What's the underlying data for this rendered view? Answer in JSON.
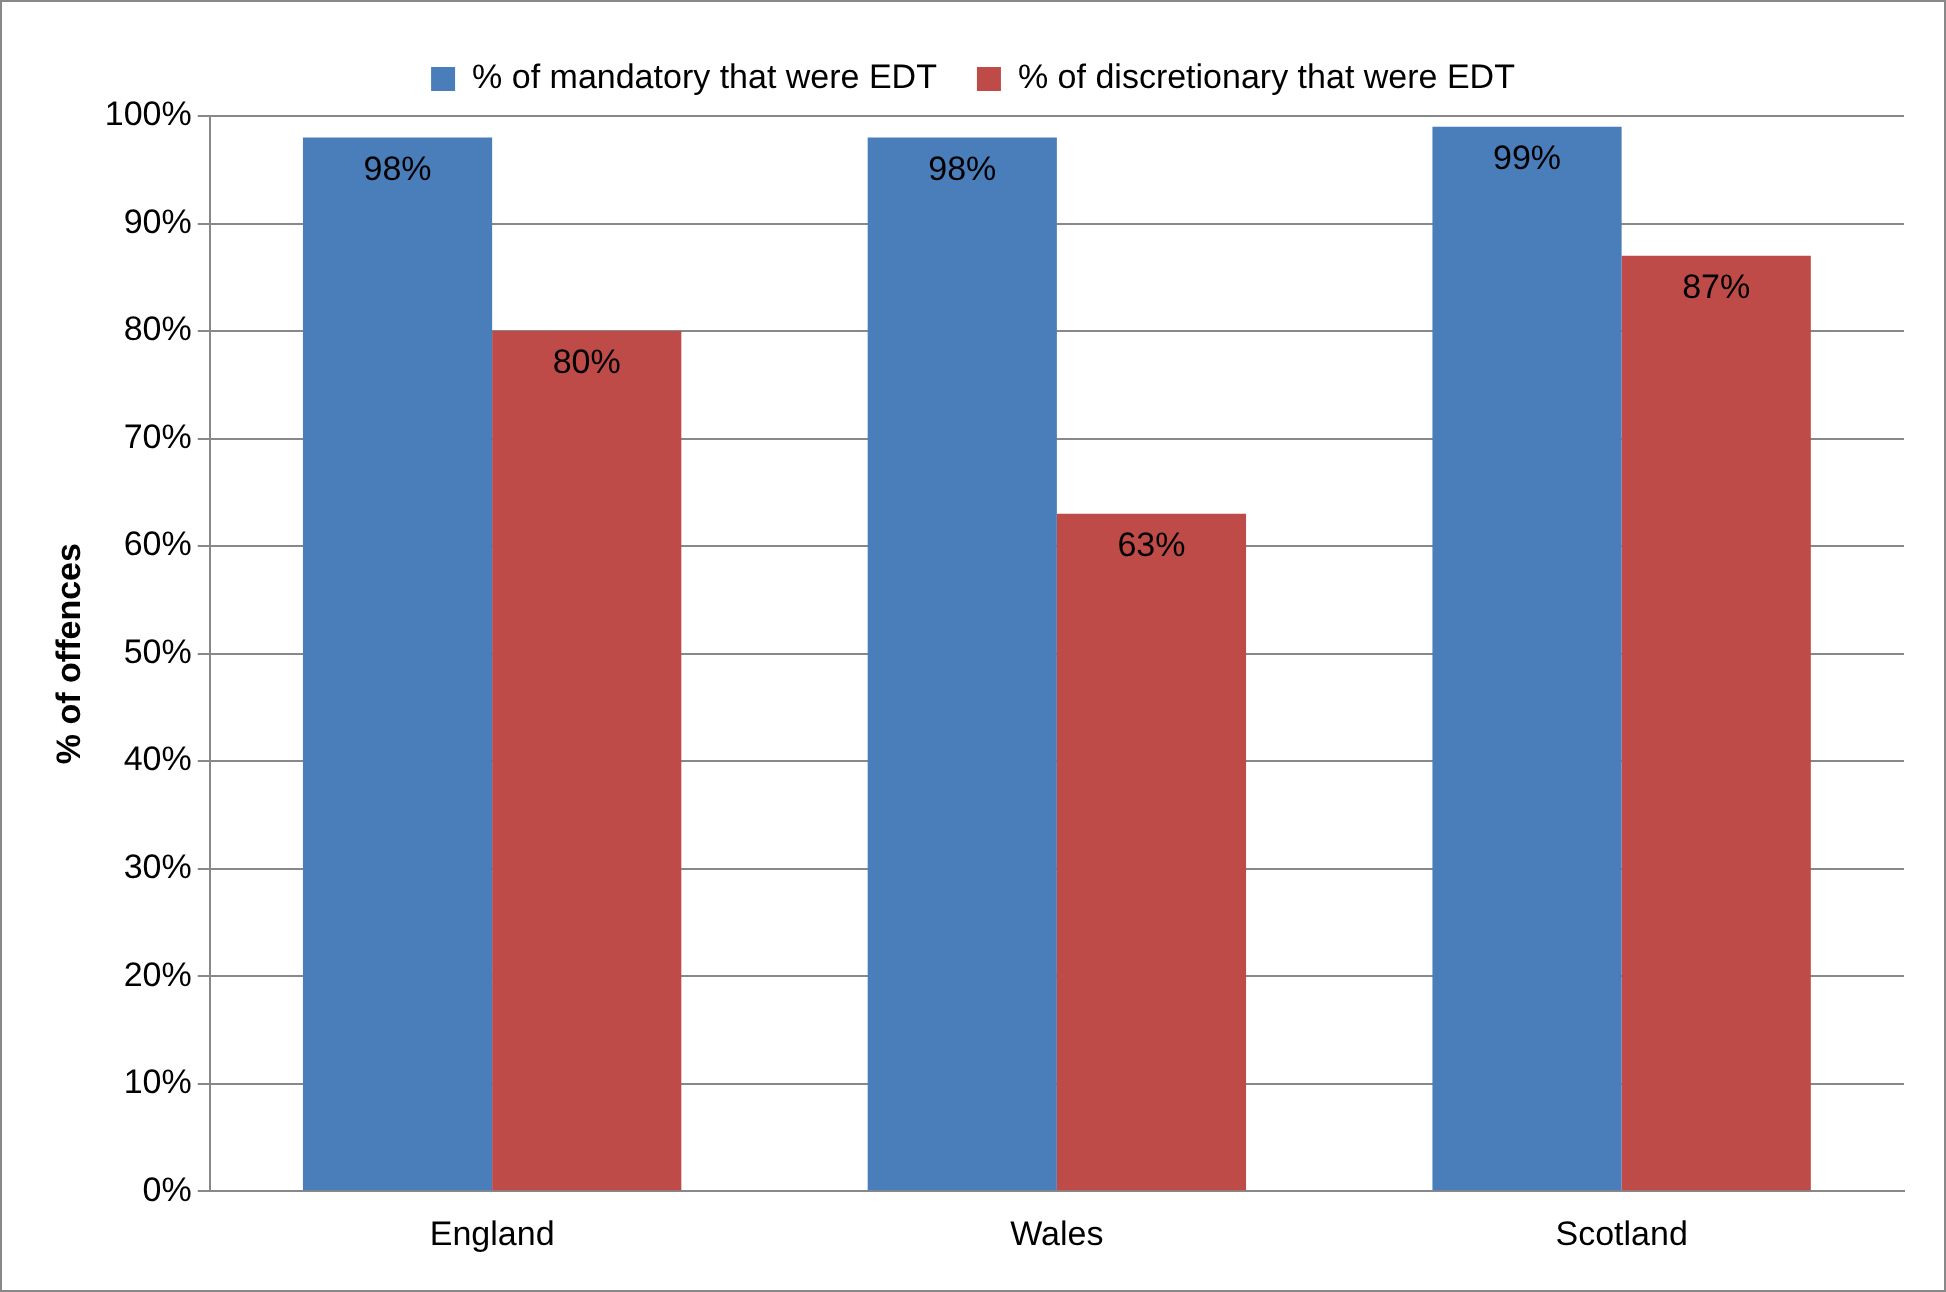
{
  "chart_data": {
    "type": "bar",
    "ylabel": "% of offences",
    "categories": [
      "England",
      "Wales",
      "Scotland"
    ],
    "series": [
      {
        "name": "% of mandatory that were EDT",
        "color": "#4a7ebb",
        "values": [
          98,
          98,
          99
        ],
        "value_labels": [
          "98%",
          "98%",
          "99%"
        ]
      },
      {
        "name": "% of discretionary that were EDT",
        "color": "#be4b48",
        "values": [
          80,
          63,
          87
        ],
        "value_labels": [
          "80%",
          "63%",
          "87%"
        ]
      }
    ],
    "ylim": [
      0,
      100
    ],
    "yticks": [
      {
        "value": 0,
        "label": "0%"
      },
      {
        "value": 10,
        "label": "10%"
      },
      {
        "value": 20,
        "label": "20%"
      },
      {
        "value": 30,
        "label": "30%"
      },
      {
        "value": 40,
        "label": "40%"
      },
      {
        "value": 50,
        "label": "50%"
      },
      {
        "value": 60,
        "label": "60%"
      },
      {
        "value": 70,
        "label": "70%"
      },
      {
        "value": 80,
        "label": "80%"
      },
      {
        "value": 90,
        "label": "90%"
      },
      {
        "value": 100,
        "label": "100%"
      }
    ],
    "grid": "y",
    "legend": "top"
  }
}
